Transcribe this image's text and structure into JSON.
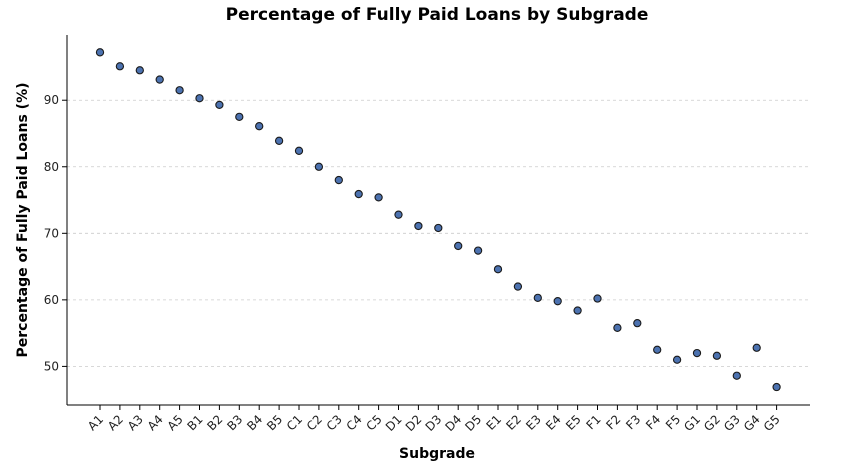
{
  "chart_data": {
    "type": "scatter",
    "title": "Percentage of Fully Paid Loans by Subgrade",
    "xlabel": "Subgrade",
    "ylabel": "Percentage of Fully Paid Loans (%)",
    "categories": [
      "A1",
      "A2",
      "A3",
      "A4",
      "A5",
      "B1",
      "B2",
      "B3",
      "B4",
      "B5",
      "C1",
      "C2",
      "C3",
      "C4",
      "C5",
      "D1",
      "D2",
      "D3",
      "D4",
      "D5",
      "E1",
      "E2",
      "E3",
      "E4",
      "E5",
      "F1",
      "F2",
      "F3",
      "F4",
      "F5",
      "G1",
      "G2",
      "G3",
      "G4",
      "G5"
    ],
    "values": [
      97.2,
      95.1,
      94.5,
      93.1,
      91.5,
      90.3,
      89.3,
      87.5,
      86.1,
      83.9,
      82.4,
      80.0,
      78.0,
      75.9,
      75.4,
      72.8,
      71.1,
      70.8,
      68.1,
      67.4,
      64.6,
      62.0,
      60.3,
      59.8,
      58.4,
      60.2,
      55.8,
      56.5,
      52.5,
      51.0,
      52.0,
      51.6,
      48.6,
      52.8,
      46.9
    ],
    "yticks": [
      50,
      60,
      70,
      80,
      90
    ],
    "ylim": [
      44.2,
      99.8
    ],
    "grid": "horizontal dashed",
    "marker_color": "#4c72b0",
    "marker_edge": "#1a1a1a"
  }
}
